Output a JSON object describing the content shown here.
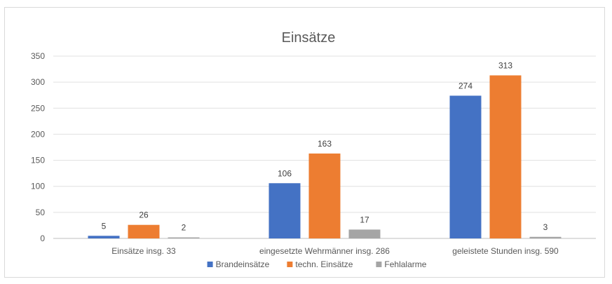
{
  "chart_data": {
    "type": "bar",
    "title": "Einsätze",
    "xlabel": "",
    "ylabel": "",
    "categories": [
      "Einsätze insg. 33",
      "eingesetzte Wehrmänner insg. 286",
      "geleistete Stunden insg. 590"
    ],
    "series": [
      {
        "name": "Brandeinsätze",
        "values": [
          5,
          106,
          274
        ],
        "color": "#4472c4"
      },
      {
        "name": "techn. Einsätze",
        "values": [
          26,
          163,
          313
        ],
        "color": "#ed7d31"
      },
      {
        "name": "Fehlalarme",
        "values": [
          2,
          17,
          3
        ],
        "color": "#a5a5a5"
      }
    ],
    "ylim": [
      0,
      350
    ],
    "yticks": [
      0,
      50,
      100,
      150,
      200,
      250,
      300,
      350
    ],
    "grid": true,
    "legend_position": "bottom",
    "data_labels": true
  }
}
